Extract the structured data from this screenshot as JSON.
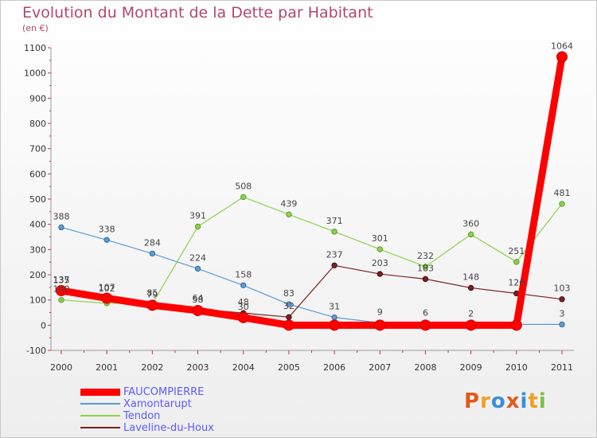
{
  "header": {
    "title": "Evolution du Montant de la Dette par Habitant",
    "unit": "(en €)"
  },
  "logo": {
    "text": "Proxiti",
    "colors": [
      "#e05a1a",
      "#f0a020",
      "#3a8fd8",
      "#e05a1a",
      "#3a8fd8",
      "#f0a020",
      "#79c143"
    ]
  },
  "chart_data": {
    "type": "line",
    "title": "Evolution du Montant de la Dette par Habitant",
    "ylabel": "(en €)",
    "xlabel": "",
    "x": [
      "2000",
      "2001",
      "2002",
      "2003",
      "2004",
      "2005",
      "2006",
      "2007",
      "2008",
      "2009",
      "2010",
      "2011"
    ],
    "ylim": [
      -100,
      1100
    ],
    "yticks": [
      "-100",
      "0",
      "100",
      "200",
      "300",
      "400",
      "500",
      "600",
      "700",
      "800",
      "900",
      "1000",
      "1100"
    ],
    "grid": false,
    "legend_position": "bottom-left",
    "series": [
      {
        "name": "FAUCOMPIERRE",
        "color": "#ff0000",
        "values": [
          137,
          107,
          79,
          58,
          30,
          0,
          0,
          0,
          0,
          0,
          0,
          1064
        ],
        "labels": [
          "137",
          "107",
          "79",
          "58",
          "30",
          "",
          "",
          "",
          "",
          "",
          "",
          "1064"
        ]
      },
      {
        "name": "Xamontarupt",
        "color": "#5b9bd5",
        "values": [
          388,
          338,
          284,
          224,
          158,
          83,
          31,
          9,
          6,
          2,
          3,
          3
        ],
        "labels": [
          "388",
          "338",
          "284",
          "224",
          "158",
          "83",
          "31",
          "9",
          "6",
          "2",
          "",
          "3"
        ]
      },
      {
        "name": "Tendon",
        "color": "#8fd14f",
        "values": [
          100,
          87,
          85,
          391,
          508,
          439,
          371,
          301,
          232,
          360,
          251,
          481
        ],
        "labels": [
          "100",
          "",
          "85",
          "391",
          "508",
          "439",
          "371",
          "301",
          "232",
          "360",
          "251",
          "481"
        ]
      },
      {
        "name": "Laveline-du-Houx",
        "color": "#7a1f1f",
        "values": [
          135,
          102,
          79,
          64,
          48,
          32,
          237,
          203,
          183,
          148,
          126,
          103
        ],
        "labels": [
          "135",
          "102",
          "",
          "64",
          "48",
          "32",
          "237",
          "203",
          "183",
          "148",
          "126",
          "103"
        ]
      }
    ]
  }
}
